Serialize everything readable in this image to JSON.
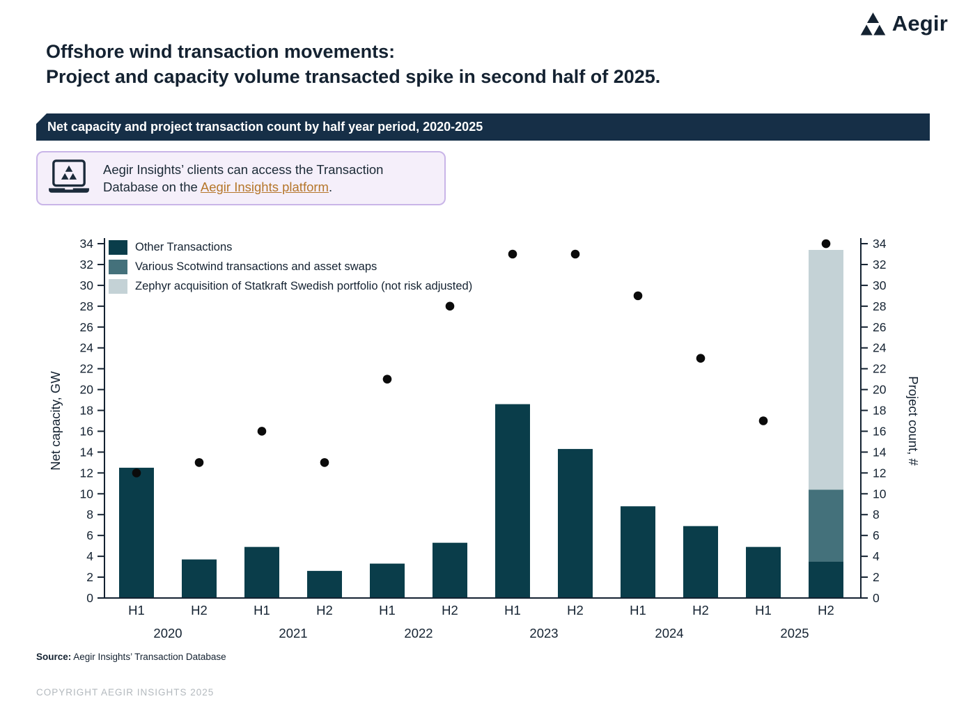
{
  "logo": {
    "text": "Aegir"
  },
  "title": {
    "line1": "Offshore wind transaction movements:",
    "line2": "Project and capacity volume transacted spike in second half of 2025."
  },
  "banner": {
    "label": "Net capacity and project transaction count by half year period, 2020-2025",
    "bg": "#162f47"
  },
  "infobox": {
    "text_before": "Aegir Insights’ clients can access the Transaction Database on the ",
    "link_text": "Aegir Insights platform",
    "text_after": ".",
    "link_color": "#b5762a"
  },
  "chart_data": {
    "type": "bar",
    "title": "Net capacity and project transaction count by half year period, 2020-2025",
    "categories": [
      "H1",
      "H2",
      "H1",
      "H2",
      "H1",
      "H2",
      "H1",
      "H2",
      "H1",
      "H2",
      "H1",
      "H2"
    ],
    "years": [
      "2020",
      "2021",
      "2022",
      "2023",
      "2024",
      "2025"
    ],
    "ylabel_left": "Net capacity, GW",
    "ylabel_right": "Project count, #",
    "ylim": [
      0,
      34
    ],
    "ytick_step": 2,
    "grid": false,
    "legend_position": "top-left-inside",
    "series": [
      {
        "name": "Other Transactions",
        "color": "#0a3d4a",
        "values": [
          12.5,
          3.7,
          4.9,
          2.6,
          3.3,
          5.3,
          18.6,
          14.3,
          8.8,
          6.9,
          4.9,
          3.5
        ]
      },
      {
        "name": "Various Scotwind transactions and asset swaps",
        "color": "#44717b",
        "values": [
          0,
          0,
          0,
          0,
          0,
          0,
          0,
          0,
          0,
          0,
          0,
          6.9
        ]
      },
      {
        "name": "Zephyr acquisition of Statkraft Swedish portfolio (not risk adjusted)",
        "color": "#c4d2d6",
        "values": [
          0,
          0,
          0,
          0,
          0,
          0,
          0,
          0,
          0,
          0,
          0,
          23.0
        ]
      }
    ],
    "scatter": {
      "name": "Project count",
      "color": "#0b0b0b",
      "values": [
        12,
        13,
        16,
        13,
        21,
        28,
        33,
        33,
        29,
        23,
        17,
        34
      ]
    }
  },
  "source": {
    "label": "Source:",
    "text": " Aegir Insights’ Transaction Database"
  },
  "copyright": "COPYRIGHT AEGIR INSIGHTS 2025"
}
